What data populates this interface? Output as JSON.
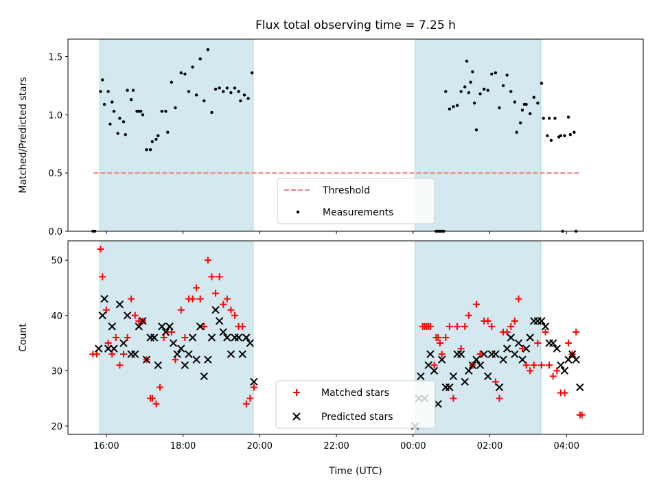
{
  "figure_title": "Flux total observing time = 7.25 h",
  "colors": {
    "shade": "#d3e9ef",
    "shade_edge": "#a9d3de",
    "threshold": "#f28080",
    "measurements": "#000000",
    "matched": "#ff0000",
    "predicted": "#000000"
  },
  "chart_data": [
    {
      "type": "scatter",
      "ylabel": "Matched/Predicted stars",
      "xlabel": "",
      "xlim": [
        15.0,
        30.0
      ],
      "ylim": [
        0.0,
        1.65
      ],
      "x_ticks": [
        {
          "x": 16,
          "label": "16:00"
        },
        {
          "x": 18,
          "label": "18:00"
        },
        {
          "x": 20,
          "label": "20:00"
        },
        {
          "x": 22,
          "label": "22:00"
        },
        {
          "x": 24,
          "label": "00:00"
        },
        {
          "x": 26,
          "label": "02:00"
        },
        {
          "x": 28,
          "label": "04:00"
        }
      ],
      "y_ticks": [
        {
          "y": 0.0,
          "label": "0.0"
        },
        {
          "y": 0.5,
          "label": "0.5"
        },
        {
          "y": 1.0,
          "label": "1.0"
        },
        {
          "y": 1.5,
          "label": "1.5"
        }
      ],
      "shaded_intervals": [
        [
          15.83,
          19.83
        ],
        [
          24.05,
          27.33
        ]
      ],
      "threshold": {
        "name": "Threshold",
        "y": 0.5,
        "x_range": [
          15.67,
          28.33
        ]
      },
      "legend": [
        "Threshold",
        "Measurements"
      ],
      "legend_position": "lower center",
      "series": [
        {
          "name": "Measurements",
          "x": [
            15.65,
            15.7,
            15.85,
            15.9,
            15.95,
            16.05,
            16.1,
            16.15,
            16.2,
            16.3,
            16.35,
            16.45,
            16.5,
            16.55,
            16.65,
            16.7,
            16.8,
            16.85,
            16.9,
            16.95,
            17.05,
            17.15,
            17.2,
            17.3,
            17.35,
            17.45,
            17.55,
            17.6,
            17.7,
            17.8,
            17.95,
            18.05,
            18.15,
            18.25,
            18.35,
            18.45,
            18.55,
            18.65,
            18.75,
            18.85,
            18.95,
            19.05,
            19.15,
            19.25,
            19.35,
            19.45,
            19.5,
            19.6,
            19.7,
            19.8,
            24.6,
            24.65,
            24.7,
            24.75,
            24.8,
            24.85,
            24.95,
            25.05,
            25.15,
            25.25,
            25.35,
            25.4,
            25.45,
            25.5,
            25.55,
            25.6,
            25.65,
            25.75,
            25.85,
            25.95,
            26.05,
            26.15,
            26.25,
            26.35,
            26.45,
            26.55,
            26.65,
            26.7,
            26.8,
            26.85,
            26.9,
            26.95,
            27.05,
            27.15,
            27.25,
            27.35,
            27.4,
            27.5,
            27.55,
            27.6,
            27.7,
            27.8,
            27.85,
            27.9,
            27.95,
            28.05,
            28.1,
            28.2,
            28.25
          ],
          "y": [
            0.0,
            0.0,
            1.2,
            1.3,
            1.09,
            1.2,
            0.92,
            1.11,
            1.03,
            0.84,
            0.97,
            0.94,
            0.83,
            1.21,
            1.13,
            1.21,
            1.03,
            1.03,
            1.03,
            1.0,
            0.7,
            0.7,
            0.77,
            0.79,
            0.82,
            1.03,
            1.03,
            0.85,
            1.28,
            1.06,
            1.36,
            1.35,
            1.2,
            1.41,
            1.17,
            1.48,
            1.12,
            1.56,
            1.02,
            1.22,
            1.23,
            1.2,
            1.23,
            1.19,
            1.23,
            1.2,
            1.12,
            1.17,
            1.14,
            1.36,
            0.0,
            0.0,
            0.0,
            0.0,
            0.0,
            1.2,
            1.05,
            1.07,
            1.08,
            1.2,
            1.24,
            1.46,
            1.19,
            1.28,
            1.37,
            1.1,
            0.87,
            1.18,
            1.22,
            1.21,
            1.35,
            1.36,
            1.06,
            1.25,
            1.34,
            1.2,
            1.11,
            0.85,
            0.93,
            1.04,
            1.09,
            1.09,
            1.01,
            1.15,
            1.1,
            1.27,
            0.97,
            0.82,
            0.97,
            0.78,
            0.97,
            0.81,
            0.82,
            0.0,
            0.82,
            0.98,
            0.83,
            0.85,
            0.0
          ]
        }
      ]
    },
    {
      "type": "scatter",
      "ylabel": "Count",
      "xlabel": "Time (UTC)",
      "xlim": [
        15.0,
        30.0
      ],
      "ylim": [
        18.5,
        53.5
      ],
      "x_ticks": [
        {
          "x": 16,
          "label": "16:00"
        },
        {
          "x": 18,
          "label": "18:00"
        },
        {
          "x": 20,
          "label": "20:00"
        },
        {
          "x": 22,
          "label": "22:00"
        },
        {
          "x": 24,
          "label": "00:00"
        },
        {
          "x": 26,
          "label": "02:00"
        },
        {
          "x": 28,
          "label": "04:00"
        }
      ],
      "y_ticks": [
        {
          "y": 20,
          "label": "20"
        },
        {
          "y": 30,
          "label": "30"
        },
        {
          "y": 40,
          "label": "40"
        },
        {
          "y": 50,
          "label": "50"
        }
      ],
      "shaded_intervals": [
        [
          15.83,
          19.83
        ],
        [
          24.05,
          27.33
        ]
      ],
      "legend": [
        "Matched stars",
        "Predicted stars"
      ],
      "legend_position": "lower center",
      "series": [
        {
          "name": "Matched stars",
          "marker": "plus",
          "x": [
            15.65,
            15.75,
            15.85,
            15.9,
            16.0,
            16.05,
            16.15,
            16.25,
            16.35,
            16.45,
            16.55,
            16.65,
            16.75,
            16.85,
            16.95,
            17.05,
            17.15,
            17.2,
            17.3,
            17.4,
            17.5,
            17.6,
            17.7,
            17.8,
            17.95,
            18.05,
            18.15,
            18.25,
            18.35,
            18.45,
            18.55,
            18.65,
            18.75,
            18.85,
            18.95,
            19.05,
            19.15,
            19.25,
            19.35,
            19.45,
            19.55,
            19.65,
            19.75,
            19.85,
            24.25,
            24.3,
            24.35,
            24.4,
            24.45,
            24.55,
            24.6,
            24.65,
            24.7,
            24.75,
            24.85,
            24.95,
            25.05,
            25.15,
            25.25,
            25.35,
            25.45,
            25.55,
            25.65,
            25.75,
            25.85,
            25.95,
            26.05,
            26.15,
            26.25,
            26.35,
            26.45,
            26.55,
            26.65,
            26.75,
            26.85,
            26.95,
            27.05,
            27.15,
            27.25,
            27.35,
            27.45,
            27.55,
            27.65,
            27.75,
            27.85,
            27.95,
            28.05,
            28.15,
            28.25,
            28.35,
            28.4
          ],
          "y": [
            33,
            33,
            52,
            47,
            41,
            35,
            33,
            36,
            31,
            33,
            36,
            43,
            40,
            39,
            39,
            32,
            25,
            25,
            24,
            27,
            36,
            37,
            37,
            32,
            41,
            36,
            43,
            43,
            45,
            43,
            38,
            50,
            47,
            44,
            47,
            42,
            43,
            41,
            40,
            38,
            38,
            24,
            25,
            27,
            38,
            38,
            38,
            38,
            38,
            31,
            36,
            36,
            35,
            33,
            36,
            38,
            25,
            38,
            34,
            38,
            40,
            31,
            42,
            33,
            39,
            39,
            38,
            28,
            25,
            37,
            37,
            38,
            39,
            43,
            34,
            31,
            30,
            31,
            35,
            31,
            37,
            31,
            29,
            30,
            26,
            26,
            35,
            33,
            37,
            22,
            22
          ]
        },
        {
          "name": "Predicted stars",
          "marker": "x",
          "x": [
            15.8,
            15.9,
            15.95,
            16.05,
            16.15,
            16.2,
            16.35,
            16.45,
            16.55,
            16.65,
            16.75,
            16.85,
            16.95,
            17.05,
            17.15,
            17.25,
            17.35,
            17.45,
            17.55,
            17.65,
            17.75,
            17.85,
            17.95,
            18.05,
            18.15,
            18.25,
            18.35,
            18.45,
            18.55,
            18.65,
            18.75,
            18.85,
            18.95,
            19.05,
            19.15,
            19.25,
            19.35,
            19.45,
            19.55,
            19.65,
            19.75,
            19.85,
            24.05,
            24.15,
            24.2,
            24.3,
            24.4,
            24.45,
            24.55,
            24.65,
            24.75,
            24.85,
            24.95,
            25.05,
            25.15,
            25.25,
            25.35,
            25.45,
            25.55,
            25.65,
            25.75,
            25.85,
            25.95,
            26.05,
            26.15,
            26.25,
            26.35,
            26.45,
            26.55,
            26.65,
            26.75,
            26.85,
            26.95,
            27.05,
            27.15,
            27.25,
            27.35,
            27.45,
            27.55,
            27.65,
            27.75,
            27.85,
            27.95,
            28.05,
            28.15,
            28.25,
            28.35
          ],
          "y": [
            34,
            40,
            43,
            34,
            38,
            34,
            42,
            35,
            40,
            33,
            33,
            38,
            39,
            32,
            36,
            36,
            31,
            38,
            37,
            38,
            35,
            33,
            34,
            31,
            33,
            36,
            32,
            38,
            29,
            32,
            36,
            41,
            39,
            37,
            36,
            33,
            36,
            36,
            33,
            36,
            35,
            28,
            20,
            25,
            29,
            25,
            31,
            33,
            30,
            24,
            32,
            27,
            27,
            29,
            33,
            33,
            28,
            30,
            31,
            32,
            31,
            33,
            29,
            33,
            33,
            27,
            32,
            34,
            36,
            33,
            35,
            32,
            34,
            36,
            39,
            39,
            39,
            38,
            35,
            35,
            34,
            31,
            30,
            32,
            33,
            32,
            27
          ]
        }
      ]
    }
  ]
}
